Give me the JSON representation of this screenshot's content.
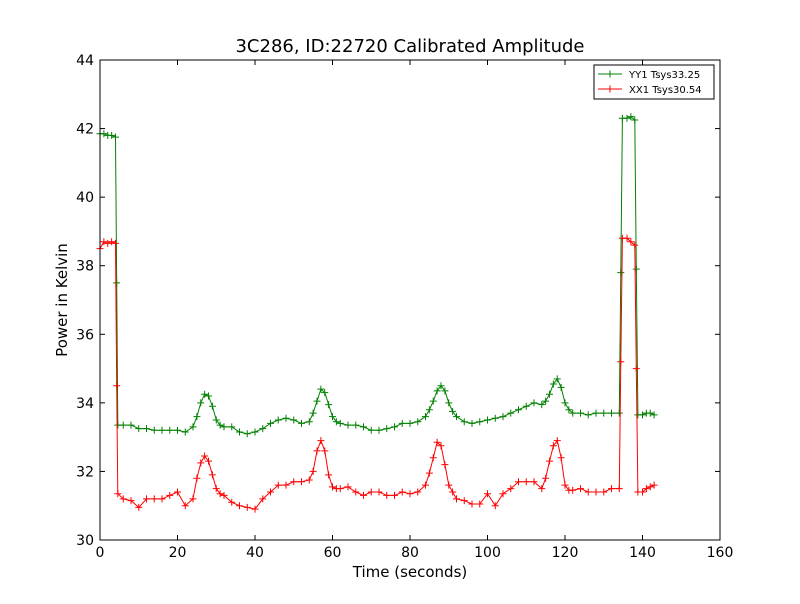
{
  "chart_data": {
    "type": "line",
    "title": "3C286, ID:22720 Calibrated Amplitude",
    "xlabel": "Time (seconds)",
    "ylabel": "Power in Kelvin",
    "xlim": [
      0,
      160
    ],
    "ylim": [
      30,
      44
    ],
    "xticks": [
      0,
      20,
      40,
      60,
      80,
      100,
      120,
      140,
      160
    ],
    "yticks": [
      30,
      32,
      34,
      36,
      38,
      40,
      42,
      44
    ],
    "grid": false,
    "legend_position": "top-right",
    "series": [
      {
        "name": "YY1 Tsys33.25",
        "color": "#008000",
        "marker": "+",
        "x": [
          0,
          1,
          2,
          3,
          4,
          4.3,
          4.6,
          6,
          8,
          10,
          12,
          14,
          16,
          18,
          20,
          22,
          24,
          25,
          26,
          27,
          28,
          29,
          30,
          31,
          32,
          34,
          36,
          38,
          40,
          42,
          44,
          46,
          48,
          50,
          52,
          54,
          55,
          56,
          57,
          58,
          59,
          60,
          61,
          62,
          64,
          66,
          68,
          70,
          72,
          74,
          76,
          78,
          80,
          82,
          84,
          85,
          86,
          87,
          88,
          89,
          90,
          91,
          92,
          94,
          96,
          98,
          100,
          102,
          104,
          106,
          108,
          110,
          112,
          114,
          115,
          116,
          117,
          118,
          119,
          120,
          121,
          122,
          124,
          126,
          128,
          130,
          132,
          134,
          134.4,
          134.8,
          136,
          137,
          138,
          138.4,
          138.8,
          140,
          141,
          142,
          143
        ],
        "values": [
          41.85,
          41.85,
          41.8,
          41.8,
          41.75,
          37.5,
          33.35,
          33.35,
          33.35,
          33.25,
          33.25,
          33.2,
          33.2,
          33.2,
          33.2,
          33.15,
          33.3,
          33.6,
          34.0,
          34.25,
          34.2,
          33.9,
          33.5,
          33.35,
          33.3,
          33.3,
          33.15,
          33.1,
          33.15,
          33.25,
          33.4,
          33.5,
          33.55,
          33.5,
          33.4,
          33.45,
          33.7,
          34.05,
          34.4,
          34.3,
          33.95,
          33.6,
          33.45,
          33.4,
          33.35,
          33.35,
          33.3,
          33.2,
          33.2,
          33.25,
          33.3,
          33.4,
          33.4,
          33.45,
          33.6,
          33.8,
          34.05,
          34.35,
          34.5,
          34.35,
          34.0,
          33.75,
          33.6,
          33.45,
          33.4,
          33.45,
          33.5,
          33.55,
          33.6,
          33.7,
          33.8,
          33.9,
          34.0,
          33.95,
          34.05,
          34.25,
          34.55,
          34.7,
          34.45,
          34.0,
          33.8,
          33.7,
          33.7,
          33.65,
          33.7,
          33.7,
          33.7,
          33.7,
          37.8,
          42.3,
          42.3,
          42.35,
          42.25,
          37.9,
          33.65,
          33.65,
          33.7,
          33.7,
          33.65
        ]
      },
      {
        "name": "XX1 Tsys30.54",
        "color": "#ff0000",
        "marker": "+",
        "x": [
          0,
          1,
          2,
          3,
          4,
          4.3,
          4.6,
          6,
          8,
          10,
          12,
          14,
          16,
          18,
          20,
          22,
          24,
          25,
          26,
          27,
          28,
          29,
          30,
          31,
          32,
          34,
          36,
          38,
          40,
          42,
          44,
          46,
          48,
          50,
          52,
          54,
          55,
          56,
          57,
          58,
          59,
          60,
          61,
          62,
          64,
          66,
          68,
          70,
          72,
          74,
          76,
          78,
          80,
          82,
          84,
          85,
          86,
          87,
          88,
          89,
          90,
          91,
          92,
          94,
          96,
          98,
          100,
          102,
          104,
          106,
          108,
          110,
          112,
          114,
          115,
          116,
          117,
          118,
          119,
          120,
          121,
          122,
          124,
          126,
          128,
          130,
          132,
          134,
          134.4,
          134.8,
          136,
          137,
          138,
          138.4,
          138.8,
          140,
          141,
          142,
          143
        ],
        "values": [
          38.5,
          38.7,
          38.65,
          38.7,
          38.65,
          34.5,
          31.35,
          31.2,
          31.15,
          30.95,
          31.2,
          31.2,
          31.2,
          31.3,
          31.4,
          31.0,
          31.2,
          31.8,
          32.25,
          32.45,
          32.3,
          31.9,
          31.5,
          31.35,
          31.3,
          31.1,
          31.0,
          30.95,
          30.9,
          31.2,
          31.4,
          31.6,
          31.6,
          31.7,
          31.7,
          31.75,
          32.0,
          32.6,
          32.9,
          32.6,
          31.9,
          31.55,
          31.5,
          31.5,
          31.55,
          31.4,
          31.3,
          31.4,
          31.4,
          31.3,
          31.3,
          31.4,
          31.35,
          31.4,
          31.6,
          31.95,
          32.4,
          32.85,
          32.75,
          32.2,
          31.6,
          31.4,
          31.2,
          31.15,
          31.05,
          31.05,
          31.35,
          31.0,
          31.35,
          31.5,
          31.7,
          31.7,
          31.7,
          31.5,
          31.8,
          32.3,
          32.75,
          32.9,
          32.4,
          31.6,
          31.45,
          31.45,
          31.5,
          31.4,
          31.4,
          31.4,
          31.5,
          31.5,
          35.2,
          38.8,
          38.8,
          38.7,
          38.6,
          35.0,
          31.4,
          31.4,
          31.5,
          31.55,
          31.6
        ]
      }
    ]
  }
}
